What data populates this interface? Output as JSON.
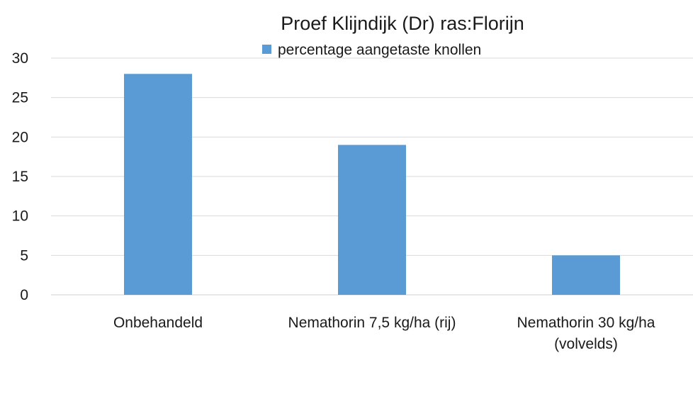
{
  "chart_data": {
    "type": "bar",
    "title": "Proef Klijndijk (Dr) ras:Florijn",
    "xlabel": "",
    "ylabel": "",
    "categories": [
      [
        "Onbehandeld"
      ],
      [
        "Nemathorin 7,5 kg/ha (rij)"
      ],
      [
        "Nemathorin 30 kg/ha",
        "(volvelds)"
      ]
    ],
    "series": [
      {
        "name": "percentage aangetaste knollen",
        "values": [
          28,
          19,
          5
        ],
        "color": "#5b9bd5"
      }
    ],
    "ylim": [
      0,
      30
    ],
    "yticks": [
      0,
      5,
      10,
      15,
      20,
      25,
      30
    ],
    "grid": true,
    "legend_position": "top-center"
  }
}
